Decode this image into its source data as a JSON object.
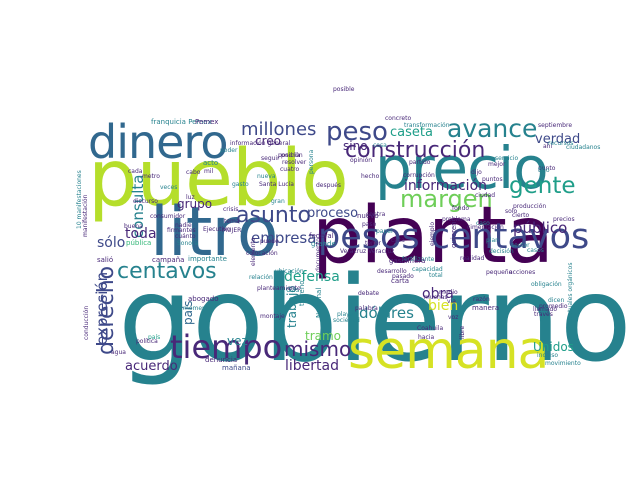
{
  "palette": {
    "dark_purple": "#440154",
    "purple": "#482878",
    "indigo": "#3e4989",
    "blue": "#31688e",
    "teal": "#26828e",
    "green_teal": "#1f9e89",
    "green": "#35b779",
    "light_green": "#6ece58",
    "lime": "#b5de2b",
    "yellow": "#d6e224"
  },
  "words": [
    {
      "t": "gobierno",
      "c": "teal"
    },
    {
      "t": "pueblo",
      "c": "lime"
    },
    {
      "t": "litro",
      "c": "blue"
    },
    {
      "t": "planta",
      "c": "dark_purple"
    },
    {
      "t": "precio",
      "c": "teal"
    },
    {
      "t": "semana",
      "c": "yellow"
    },
    {
      "t": "dinero",
      "c": "blue"
    },
    {
      "t": "pesos centavos",
      "c": "indigo"
    },
    {
      "t": "tiempo",
      "c": "purple"
    },
    {
      "t": "avance",
      "c": "teal"
    },
    {
      "t": "peso",
      "c": "indigo"
    },
    {
      "t": "construcción",
      "c": "purple"
    },
    {
      "t": "margen",
      "c": "light_green"
    },
    {
      "t": "gente",
      "c": "green_teal"
    },
    {
      "t": "centavos",
      "c": "teal"
    },
    {
      "t": "derecho",
      "c": "indigo"
    },
    {
      "t": "millones",
      "c": "indigo"
    },
    {
      "t": "asunto",
      "c": "indigo"
    },
    {
      "t": "mismo",
      "c": "purple"
    },
    {
      "t": "expresión",
      "c": "indigo"
    },
    {
      "t": "información",
      "c": "purple"
    },
    {
      "t": "empresa",
      "c": "indigo"
    },
    {
      "t": "caseta",
      "c": "green_teal"
    },
    {
      "t": "verdad",
      "c": "indigo"
    },
    {
      "t": "creo",
      "c": "purple"
    },
    {
      "t": "sino",
      "c": "purple"
    },
    {
      "t": "consulta",
      "c": "teal"
    },
    {
      "t": "grupo",
      "c": "purple"
    },
    {
      "t": "público",
      "c": "purple"
    },
    {
      "t": "proceso",
      "c": "indigo"
    },
    {
      "t": "defensa",
      "c": "green_teal"
    },
    {
      "t": "dólares",
      "c": "teal"
    },
    {
      "t": "obra",
      "c": "purple"
    },
    {
      "t": "bien",
      "c": "yellow"
    },
    {
      "t": "Unidos",
      "c": "green_teal"
    },
    {
      "t": "acuerdo",
      "c": "purple"
    },
    {
      "t": "libertad",
      "c": "purple"
    },
    {
      "t": "tramo",
      "c": "light_green"
    },
    {
      "t": "trabajo",
      "c": "teal"
    },
    {
      "t": "toda",
      "c": "purple"
    },
    {
      "t": "sólo",
      "c": "indigo"
    },
    {
      "t": "país",
      "c": "blue"
    },
    {
      "t": "vez",
      "c": "teal"
    },
    {
      "t": "franquicia Pemex",
      "c": "teal"
    },
    {
      "t": "Ejecutivo",
      "c": "purple"
    },
    {
      "t": "cimentación",
      "c": "purple"
    },
    {
      "t": "Gas",
      "c": "teal"
    },
    {
      "t": "federal",
      "c": "purple"
    },
    {
      "t": "grande",
      "c": "teal"
    },
    {
      "t": "nuevo",
      "c": "purple"
    },
    {
      "t": "Veracruz Veracruz",
      "c": "purple"
    },
    {
      "t": "fertilizante",
      "c": "teal"
    },
    {
      "t": "realidad",
      "c": "purple"
    },
    {
      "t": "dicen",
      "c": "teal"
    },
    {
      "t": "manera",
      "c": "purple"
    },
    {
      "t": "medio",
      "c": "purple"
    },
    {
      "t": "muchas",
      "c": "purple"
    },
    {
      "t": "debate",
      "c": "purple"
    },
    {
      "t": "palabra",
      "c": "purple"
    },
    {
      "t": "mañana",
      "c": "indigo"
    },
    {
      "t": "denuncia",
      "c": "purple"
    },
    {
      "t": "abogado",
      "c": "purple"
    },
    {
      "t": "importante",
      "c": "teal"
    },
    {
      "t": "campaña",
      "c": "purple"
    },
    {
      "t": "salió",
      "c": "purple"
    },
    {
      "t": "pública",
      "c": "green"
    },
    {
      "t": "Sonora",
      "c": "teal"
    },
    {
      "t": "cuánto",
      "c": "purple"
    },
    {
      "t": "nadie",
      "c": "purple"
    },
    {
      "t": "consumidor",
      "c": "purple"
    },
    {
      "t": "discurso",
      "c": "purple"
    },
    {
      "t": "cada",
      "c": "purple"
    },
    {
      "t": "cabo",
      "c": "purple"
    },
    {
      "t": "acto",
      "c": "teal"
    },
    {
      "t": "poder",
      "c": "teal"
    },
    {
      "t": "nueva",
      "c": "teal"
    },
    {
      "t": "después",
      "c": "purple"
    },
    {
      "t": "persona",
      "c": "teal"
    },
    {
      "t": "concreto",
      "c": "purple"
    },
    {
      "t": "mejor",
      "c": "purple"
    },
    {
      "t": "septiembre",
      "c": "purple"
    },
    {
      "t": "servicio",
      "c": "teal"
    },
    {
      "t": "quieren",
      "c": "purple"
    },
    {
      "t": "ejemplo",
      "c": "purple"
    },
    {
      "t": "pasado",
      "c": "purple"
    },
    {
      "t": "cosa",
      "c": "teal"
    },
    {
      "t": "carta",
      "c": "purple"
    },
    {
      "t": "gasolinera",
      "c": "purple"
    },
    {
      "t": "corrupción",
      "c": "purple"
    },
    {
      "t": "resolver",
      "c": "purple"
    },
    {
      "t": "montaje",
      "c": "purple"
    },
    {
      "t": "playa",
      "c": "teal"
    },
    {
      "t": "sociedad",
      "c": "teal"
    },
    {
      "t": "Coahuila",
      "c": "purple"
    },
    {
      "t": "agua",
      "c": "purple"
    },
    {
      "t": "incluso",
      "c": "teal"
    },
    {
      "t": "movimiento",
      "c": "teal"
    },
    {
      "t": "través",
      "c": "purple"
    },
    {
      "t": "promedio",
      "c": "purple"
    },
    {
      "t": "acciones",
      "c": "purple"
    },
    {
      "t": "pequeño",
      "c": "purple"
    },
    {
      "t": "Nacional",
      "c": "teal"
    },
    {
      "t": "documento",
      "c": "purple"
    },
    {
      "t": "terreno",
      "c": "teal"
    },
    {
      "t": "hacia",
      "c": "purple"
    },
    {
      "t": "intelectuales orgánicos",
      "c": "teal"
    },
    {
      "t": "manifestación",
      "c": "purple"
    },
    {
      "t": "10 manifestaciones",
      "c": "teal"
    },
    {
      "t": "conducción",
      "c": "purple"
    },
    {
      "t": "buena",
      "c": "purple"
    },
    {
      "t": "firmantes",
      "c": "purple"
    },
    {
      "t": "colocación",
      "c": "purple"
    },
    {
      "t": "relación",
      "c": "teal"
    },
    {
      "t": "elemento",
      "c": "purple"
    },
    {
      "t": "mil",
      "c": "purple"
    },
    {
      "t": "MUJER",
      "c": "purple"
    },
    {
      "t": "ubicación",
      "c": "teal"
    },
    {
      "t": "llamado",
      "c": "purple"
    },
    {
      "t": "libre",
      "c": "purple"
    },
    {
      "t": "posible",
      "c": "purple"
    },
    {
      "t": "ciudadanos",
      "c": "teal"
    },
    {
      "t": "puede",
      "c": "purple"
    },
    {
      "t": "casa",
      "c": "purple"
    },
    {
      "t": "vía",
      "c": "purple"
    },
    {
      "t": "voz",
      "c": "purple"
    },
    {
      "t": "ahí",
      "c": "purple"
    },
    {
      "t": "total",
      "c": "teal"
    },
    {
      "t": "dijo",
      "c": "purple"
    },
    {
      "t": "razón",
      "c": "purple"
    },
    {
      "t": "cuatro",
      "c": "purple"
    },
    {
      "t": "partido",
      "c": "purple"
    },
    {
      "t": "recursos",
      "c": "teal"
    },
    {
      "t": "país",
      "c": "green_teal"
    },
    {
      "t": "hecho",
      "c": "purple"
    },
    {
      "t": "papel",
      "c": "teal"
    },
    {
      "t": "paso",
      "c": "purple"
    },
    {
      "t": "caso",
      "c": "teal"
    },
    {
      "t": "posición",
      "c": "purple"
    },
    {
      "t": "Pemex",
      "c": "purple"
    },
    {
      "t": "decisión",
      "c": "teal"
    },
    {
      "t": "solo",
      "c": "purple"
    },
    {
      "t": "tener",
      "c": "purple"
    },
    {
      "t": "momento",
      "c": "teal"
    },
    {
      "t": "planteamiento",
      "c": "purple"
    },
    {
      "t": "plan",
      "c": "teal"
    },
    {
      "t": "ciudad",
      "c": "purple"
    },
    {
      "t": "puntos",
      "c": "purple"
    },
    {
      "t": "veces",
      "c": "teal"
    },
    {
      "t": "metro",
      "c": "purple"
    },
    {
      "t": "luz",
      "c": "purple"
    },
    {
      "t": "política",
      "c": "purple"
    },
    {
      "t": "fondo",
      "c": "purple"
    },
    {
      "t": "contra",
      "c": "purple"
    },
    {
      "t": "gran",
      "c": "teal"
    },
    {
      "t": "seguir",
      "c": "purple"
    },
    {
      "t": "transformación",
      "c": "teal"
    },
    {
      "t": "punto",
      "c": "purple"
    },
    {
      "t": "problema",
      "c": "purple"
    },
    {
      "t": "obligación",
      "c": "teal"
    },
    {
      "t": "información general",
      "c": "purple"
    },
    {
      "t": "podría",
      "c": "purple"
    },
    {
      "t": "Santa Lucía",
      "c": "purple"
    },
    {
      "t": "capacidad",
      "c": "teal"
    },
    {
      "t": "producción",
      "c": "purple"
    },
    {
      "t": "cierto",
      "c": "purple"
    },
    {
      "t": "gasto",
      "c": "teal"
    },
    {
      "t": "precios",
      "c": "purple"
    },
    {
      "t": "sector",
      "c": "teal"
    },
    {
      "t": "desarrollo",
      "c": "purple"
    },
    {
      "t": "opinión",
      "c": "purple"
    },
    {
      "t": "tipo",
      "c": "teal"
    },
    {
      "t": "crisis",
      "c": "purple"
    },
    {
      "t": "tema",
      "c": "purple"
    },
    {
      "t": "casos",
      "c": "teal"
    }
  ]
}
